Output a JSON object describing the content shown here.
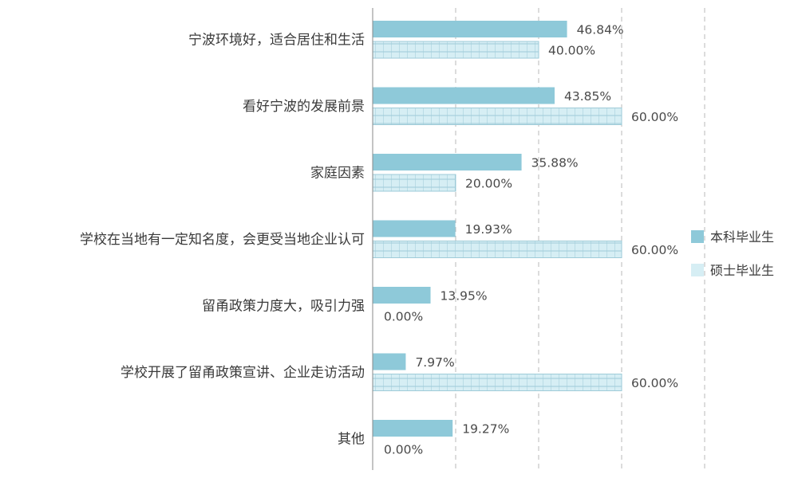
{
  "chart_data": {
    "type": "bar",
    "orientation": "horizontal",
    "categories": [
      "宁波环境好，适合居住和生活",
      "看好宁波的发展前景",
      "家庭因素",
      "学校在当地有一定知名度，会更受当地企业认可",
      "留甬政策力度大，吸引力强",
      "学校开展了留甬政策宣讲、企业走访活动",
      "其他"
    ],
    "series": [
      {
        "name": "本科毕业生",
        "color": "#8ec9d9",
        "pattern": "solid",
        "values": [
          46.84,
          43.85,
          35.88,
          19.93,
          13.95,
          7.97,
          19.27
        ],
        "labels": [
          "46.84%",
          "43.85%",
          "35.88%",
          "19.93%",
          "13.95%",
          "7.97%",
          "19.27%"
        ]
      },
      {
        "name": "硕士毕业生",
        "color": "#d6eef4",
        "pattern": "grid",
        "values": [
          40.0,
          60.0,
          20.0,
          60.0,
          0.0,
          60.0,
          0.0
        ],
        "labels": [
          "40.00%",
          "60.00%",
          "20.00%",
          "60.00%",
          "0.00%",
          "60.00%",
          "0.00%"
        ]
      }
    ],
    "xlim": [
      0,
      80
    ],
    "grid": "vertical-dashed",
    "legend_position": "right"
  }
}
